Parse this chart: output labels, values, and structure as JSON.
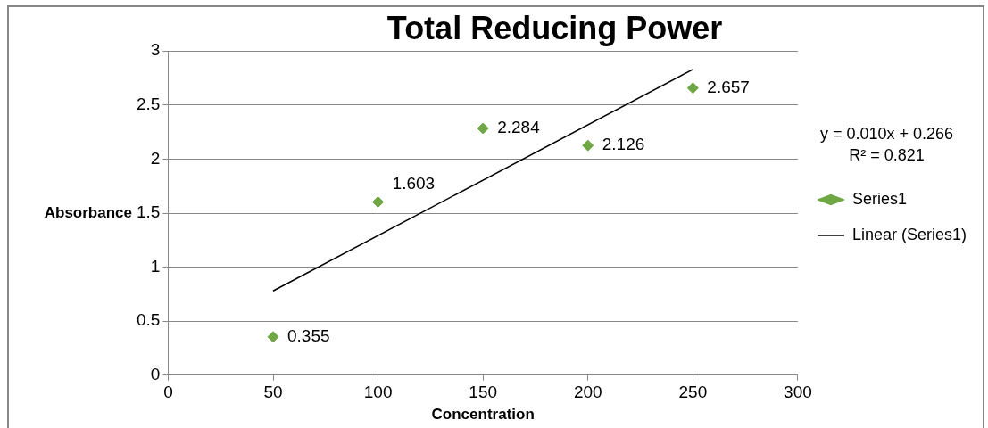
{
  "chart_data": {
    "type": "scatter",
    "title": "Total Reducing Power",
    "xlabel": "Concentration",
    "ylabel": "Absorbance",
    "x": [
      50,
      100,
      150,
      200,
      250
    ],
    "series": [
      {
        "name": "Series1",
        "color": "#70a745",
        "marker": "diamond",
        "values": [
          0.355,
          1.603,
          2.284,
          2.126,
          2.657
        ],
        "value_labels": [
          "0.355",
          "1.603",
          "2.284",
          "2.126",
          "2.657"
        ]
      },
      {
        "name": "Linear (Series1)",
        "type": "line",
        "color": "#000000",
        "marker": "none",
        "x": [
          50,
          250
        ],
        "values": [
          0.78,
          2.83
        ]
      }
    ],
    "xlim": [
      0,
      300
    ],
    "xticks": [
      0,
      50,
      100,
      150,
      200,
      250,
      300
    ],
    "ylim": [
      0,
      3
    ],
    "yticks": [
      0,
      0.5,
      1,
      1.5,
      2,
      2.5,
      3
    ],
    "grid": "y",
    "legend": "right",
    "annotations": [
      "y = 0.010x + 0.266",
      "R² = 0.821"
    ]
  }
}
